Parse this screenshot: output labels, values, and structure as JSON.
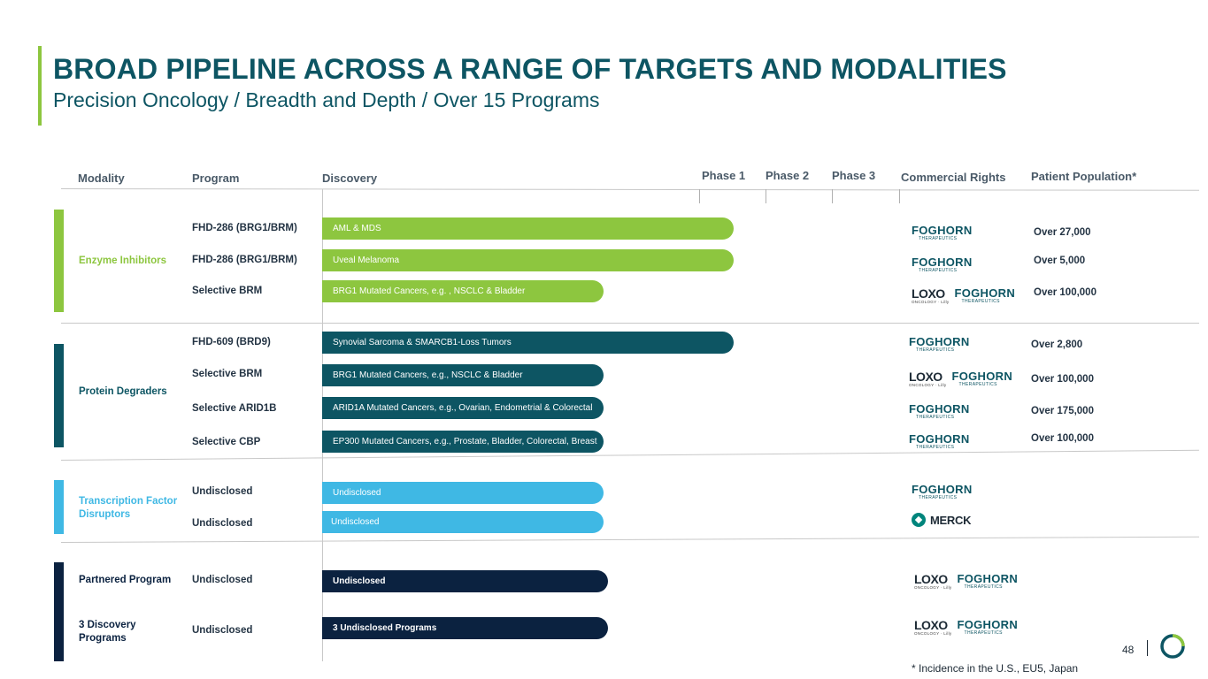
{
  "header": {
    "title": "BROAD PIPELINE ACROSS A RANGE OF TARGETS AND MODALITIES",
    "subtitle": "Precision Oncology / Breadth and Depth / Over 15 Programs"
  },
  "columns": {
    "modality": "Modality",
    "program": "Program",
    "discovery": "Discovery",
    "phase1": "Phase 1",
    "phase2": "Phase 2",
    "phase3": "Phase 3",
    "rights": "Commercial Rights",
    "population": "Patient Population*"
  },
  "groups": {
    "enzyme": "Enzyme Inhibitors",
    "degraders": "Protein Degraders",
    "tf_line1": "Transcription Factor",
    "tf_line2": "Disruptors",
    "partnered": "Partnered Program",
    "discovery_line1": "3 Discovery",
    "discovery_line2": "Programs"
  },
  "rows": [
    {
      "program": "FHD-286 (BRG1/BRM)",
      "indication": "AML & MDS",
      "population": "Over 27,000"
    },
    {
      "program": "FHD-286 (BRG1/BRM)",
      "indication": "Uveal Melanoma",
      "population": "Over 5,000"
    },
    {
      "program": "Selective BRM",
      "indication": "BRG1 Mutated Cancers, e.g. , NSCLC & Bladder",
      "population": "Over 100,000"
    },
    {
      "program": "FHD-609 (BRD9)",
      "indication": "Synovial Sarcoma & SMARCB1-Loss Tumors",
      "population": "Over 2,800"
    },
    {
      "program": "Selective BRM",
      "indication": "BRG1 Mutated Cancers, e.g., NSCLC & Bladder",
      "population": "Over 100,000"
    },
    {
      "program": "Selective ARID1B",
      "indication": "ARID1A Mutated Cancers, e.g., Ovarian, Endometrial & Colorectal",
      "population": "Over 175,000"
    },
    {
      "program": "Selective CBP",
      "indication": "EP300 Mutated Cancers, e.g., Prostate, Bladder, Colorectal, Breast",
      "population": "Over 100,000"
    },
    {
      "program": "Undisclosed",
      "indication": "Undisclosed",
      "population": ""
    },
    {
      "program": "Undisclosed",
      "indication": "Undisclosed",
      "population": ""
    },
    {
      "program": "Undisclosed",
      "indication": "Undisclosed",
      "population": ""
    },
    {
      "program": "Undisclosed",
      "indication": "3 Undisclosed Programs",
      "population": ""
    }
  ],
  "logos": {
    "foghorn": "FOGHORN",
    "foghorn_sub": "THERAPEUTICS",
    "loxo": "LOXO",
    "loxo_sub": "ONCOLOGY · Lilly",
    "merck": "MERCK"
  },
  "colors": {
    "title": "#0d5563",
    "enzyme": "#8dc63f",
    "degrader": "#0d5563",
    "tf": "#3fb8e4",
    "partnered": "#0b2240"
  },
  "footer": {
    "page_number": "48",
    "footnote": "* Incidence in the U.S., EU5, Japan"
  }
}
